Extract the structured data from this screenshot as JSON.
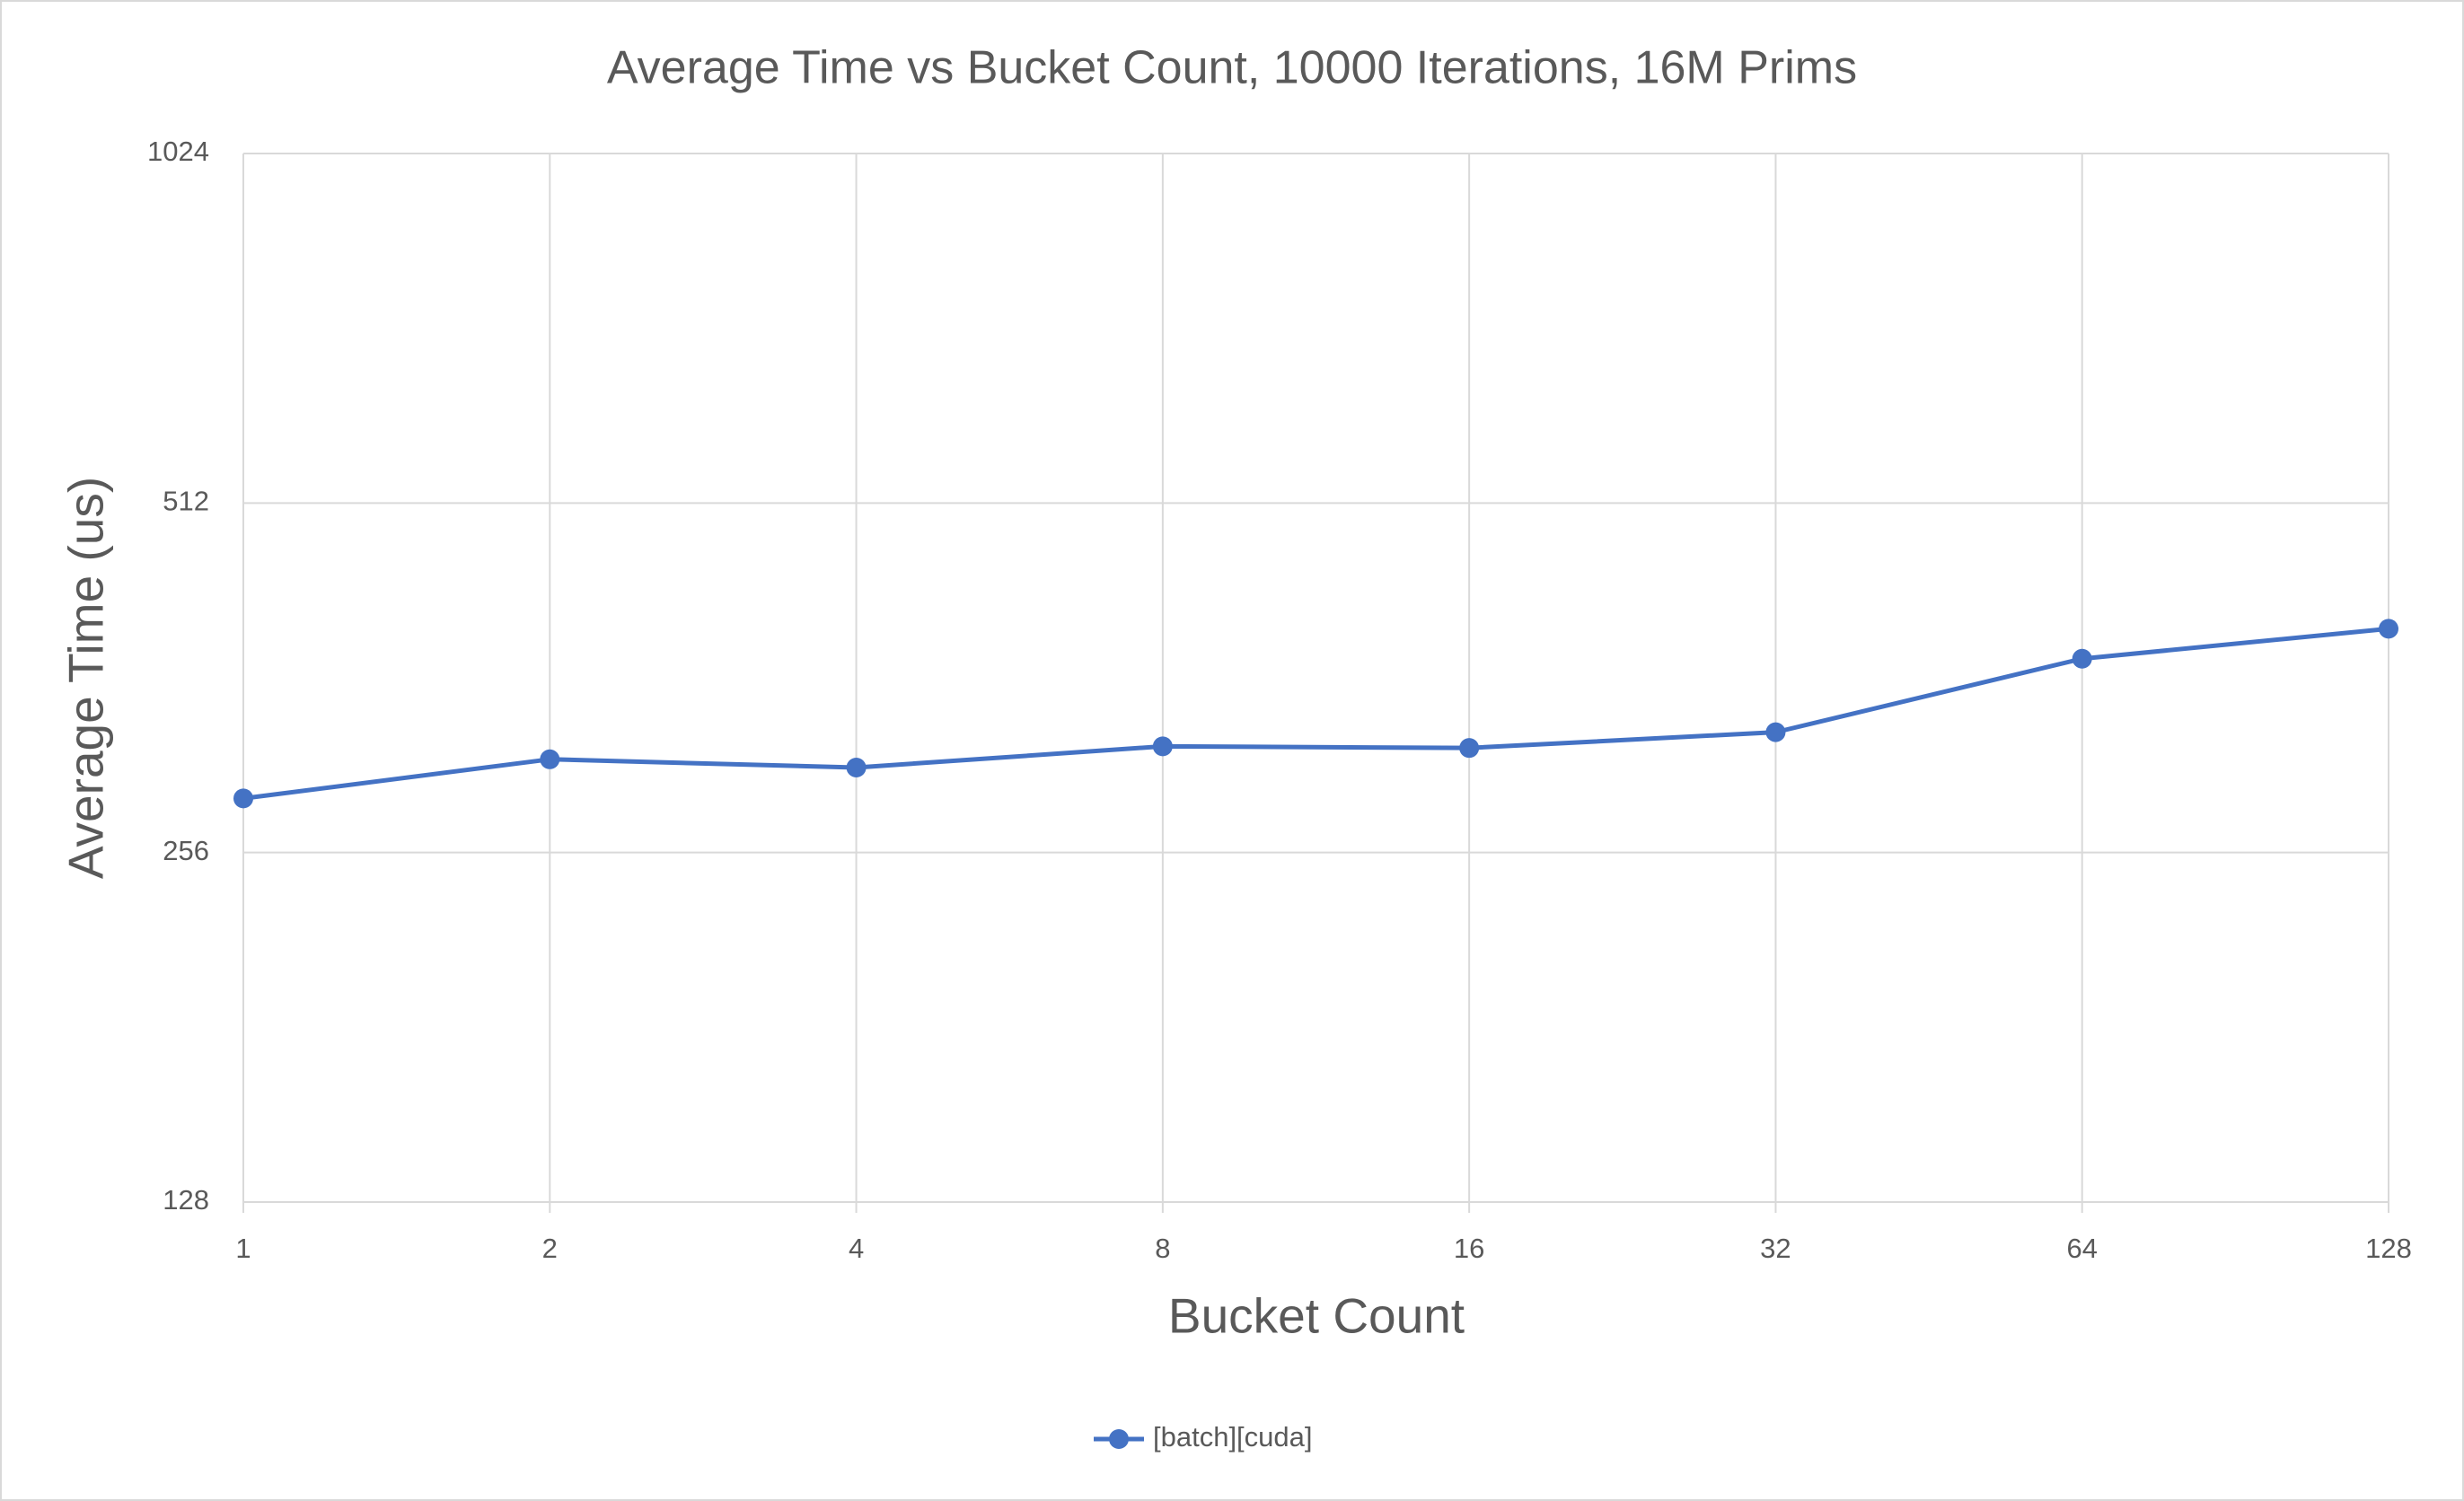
{
  "chart_data": {
    "type": "line",
    "title": "Average Time vs Bucket Count, 10000 Iterations, 16M Prims",
    "x_label": "Bucket Count",
    "y_label": "Average Time (us)",
    "x": [
      1,
      2,
      4,
      8,
      16,
      32,
      64,
      128
    ],
    "series": [
      {
        "name": "[batch][cuda]",
        "color": "#4472c4",
        "values": [
          285,
          308,
          303,
          316,
          315,
          325,
          376,
          399
        ]
      }
    ],
    "xlim": [
      1,
      128
    ],
    "xticks": [
      1,
      2,
      4,
      8,
      16,
      32,
      64,
      128
    ],
    "x_log": true,
    "ylim": [
      128,
      1024
    ],
    "yticks": [
      128,
      256,
      512,
      1024
    ],
    "y_log": true,
    "grid": true,
    "legend": "bottom"
  }
}
